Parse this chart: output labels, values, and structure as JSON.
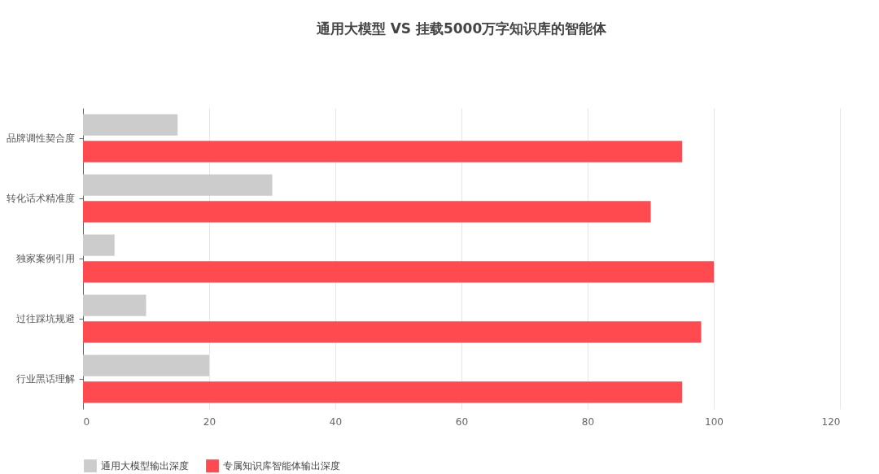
{
  "chart_data": {
    "type": "bar",
    "orientation": "horizontal",
    "title": "通用大模型 VS 挂载5000万字知识库的智能体",
    "categories": [
      "品牌调性契合度",
      "转化话术精准度",
      "独家案例引用",
      "过往踩坑规避",
      "行业黑话理解"
    ],
    "series": [
      {
        "name": "通用大模型输出深度",
        "color": "#cccccc",
        "values": [
          15,
          30,
          5,
          10,
          20
        ]
      },
      {
        "name": "专属知识库智能体输出深度",
        "color": "#ff4b4f",
        "values": [
          95,
          90,
          100,
          98,
          95
        ]
      }
    ],
    "xlim": [
      0,
      120
    ],
    "xticks": [
      0,
      20,
      40,
      60,
      80,
      100,
      120
    ],
    "grid": "x",
    "legend": "bottom"
  }
}
